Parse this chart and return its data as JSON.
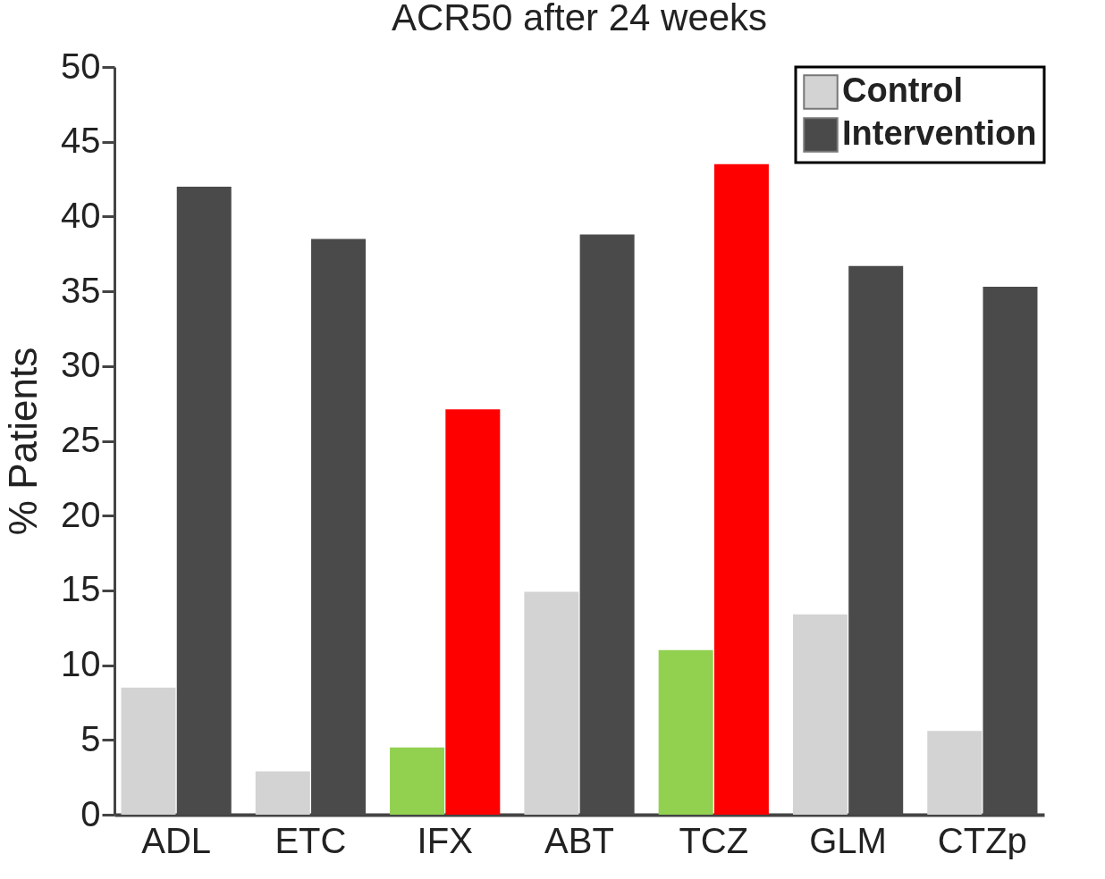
{
  "chart_data": {
    "type": "bar",
    "title": "ACR50 after 24 weeks",
    "ylabel": "% Patients",
    "categories": [
      "ADL",
      "ETC",
      "IFX",
      "ABT",
      "TCZ",
      "GLM",
      "CTZp"
    ],
    "series": [
      {
        "name": "Control",
        "color": "#d3d3d3",
        "colors": [
          "#d3d3d3",
          "#d3d3d3",
          "#92d050",
          "#d3d3d3",
          "#92d050",
          "#d3d3d3",
          "#d3d3d3"
        ],
        "values": [
          8.5,
          2.9,
          4.5,
          14.9,
          11,
          13.4,
          5.6
        ]
      },
      {
        "name": "Intervention",
        "color": "#4a4a4a",
        "colors": [
          "#4a4a4a",
          "#4a4a4a",
          "#ff0000",
          "#4a4a4a",
          "#ff0000",
          "#4a4a4a",
          "#4a4a4a"
        ],
        "values": [
          42,
          38.5,
          27.1,
          38.8,
          43.5,
          36.7,
          35.3
        ]
      }
    ],
    "ylim": [
      0,
      50
    ],
    "yticks": [
      0,
      5,
      10,
      15,
      20,
      25,
      30,
      35,
      40,
      45,
      50
    ],
    "grid": false,
    "legend": "top right"
  }
}
